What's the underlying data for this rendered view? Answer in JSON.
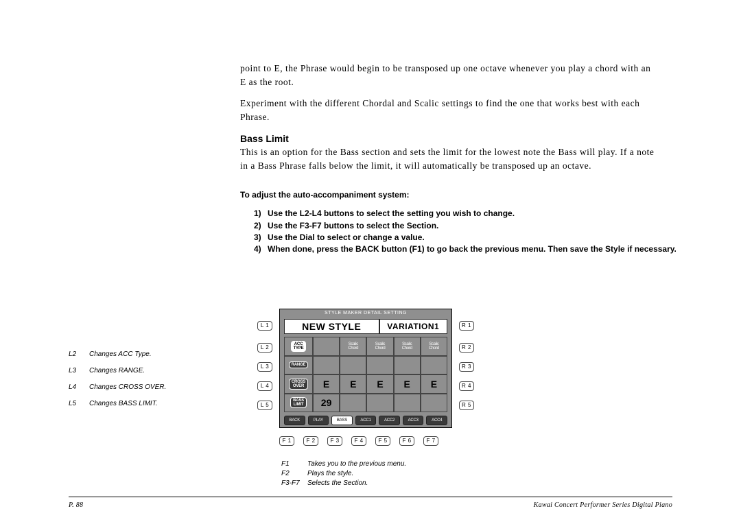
{
  "paragraphs": {
    "p1": "point to E, the Phrase would begin to be transposed up one octave whenever you play a chord with an E as the root.",
    "p2": "Experiment with the different Chordal and Scalic settings to find the one that works best with each Phrase."
  },
  "heading_bass_limit": "Bass Limit",
  "bass_limit_text": "This is an option for the Bass section and sets the limit for the lowest note the Bass will play.  If a note in a Bass Phrase falls below the limit, it will automatically be transposed up an octave.",
  "instruct_heading": "To adjust the auto-accompaniment system:",
  "instructions": [
    {
      "n": "1)",
      "t": "Use the L2-L4 buttons to select the setting you wish to change."
    },
    {
      "n": "2)",
      "t": "Use the F3-F7 buttons to select the Section."
    },
    {
      "n": "3)",
      "t": "Use the Dial to select or change a value."
    },
    {
      "n": "4)",
      "t": "When done, press the BACK button (F1) to go back the previous menu.  Then save the Style if necessary."
    }
  ],
  "legend_left": [
    {
      "k": "L2",
      "v": "Changes ACC Type."
    },
    {
      "k": "L3",
      "v": "Changes RANGE."
    },
    {
      "k": "L4",
      "v": "Changes CROSS OVER."
    },
    {
      "k": "L5",
      "v": "Changes BASS LIMIT."
    }
  ],
  "legend_bottom": [
    {
      "k": "F1",
      "v": "Takes you to the previous menu."
    },
    {
      "k": "F2",
      "v": "Plays the style."
    },
    {
      "k": "F3-F7",
      "v": "Selects the Section."
    }
  ],
  "side_buttons": {
    "left": [
      "L 1",
      "L 2",
      "L 3",
      "L 4",
      "L 5"
    ],
    "right": [
      "R 1",
      "R 2",
      "R 3",
      "R 4",
      "R 5"
    ]
  },
  "lcd": {
    "title": "STYLE MAKER DETAIL SETTING",
    "header_left": "NEW STYLE",
    "header_right": "VARIATION1",
    "row_labels": [
      "ACC\nTYPE",
      "RANGE",
      "CROSS\nOVER",
      "BASS\nLIMIT"
    ],
    "row_label_inv": [
      true,
      false,
      false,
      false
    ],
    "col_headers": [
      "Scalic\nChord",
      "Scalic\nChord",
      "Scalic\nChord",
      "Scalic\nChord"
    ],
    "row_e": [
      "E",
      "E",
      "E",
      "E",
      "E"
    ],
    "row_29": "29",
    "footer": [
      "BACK",
      "PLAY",
      "BASS",
      "ACC1",
      "ACC2",
      "ACC3",
      "ACC4"
    ],
    "footer_active": 2
  },
  "fkeys": [
    "F 1",
    "F 2",
    "F 3",
    "F 4",
    "F 5",
    "F 6",
    "F 7"
  ],
  "footer": {
    "page": "P. 88",
    "book": "Kawai Concert Performer Series Digital Piano"
  },
  "colors": {
    "lcd_bg": "#8f8f8f",
    "text": "#000000",
    "page_bg": "#ffffff"
  }
}
